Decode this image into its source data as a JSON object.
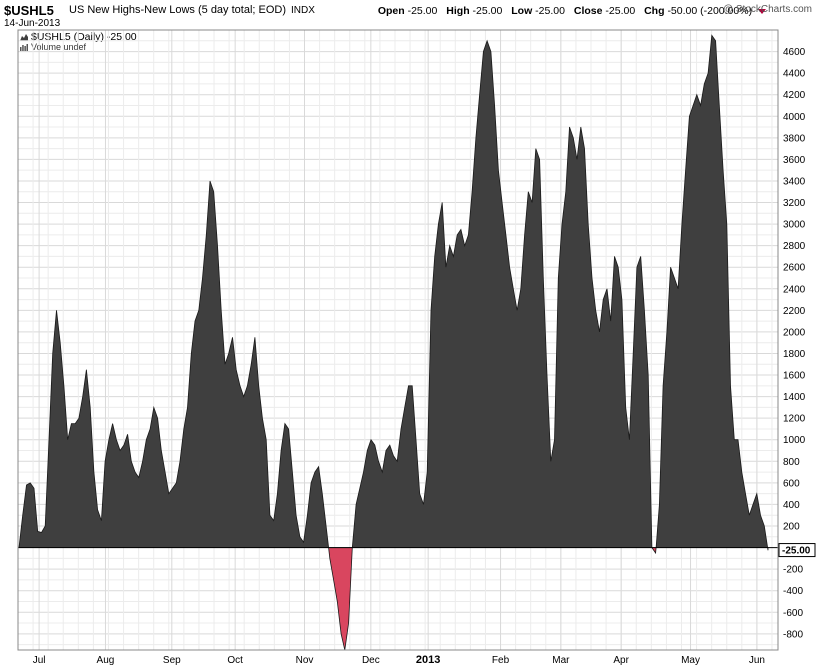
{
  "header": {
    "symbol": "$USHL5",
    "name": "US New Highs-New Lows (5 day total; EOD)",
    "index": "INDX",
    "date": "14-Jun-2013",
    "copyright": "@ StockCharts.com",
    "ohlc": {
      "open_label": "Open",
      "open": "-25.00",
      "high_label": "High",
      "high": "-25.00",
      "low_label": "Low",
      "low": "-25.00",
      "close_label": "Close",
      "close": "-25.00",
      "chg_label": "Chg",
      "chg": "-50.00 (-200.00%)"
    }
  },
  "legend": {
    "series_label": "$USHL5 (Daily) -25.00",
    "volume_label": "Volume undef"
  },
  "colors": {
    "positive_fill": "#3f3f3f",
    "negative_fill": "#d9465f",
    "grid": "#d9d9d9",
    "chg_arrow": "#b3003a"
  },
  "chart_data": {
    "type": "area",
    "title": "US New Highs-New Lows (5 day total; EOD)",
    "xlabel": "",
    "ylabel": "",
    "ylim": [
      -950,
      4800
    ],
    "grid": true,
    "y_ticks": [
      -800,
      -600,
      -400,
      -200,
      200,
      400,
      600,
      800,
      1000,
      1200,
      1400,
      1600,
      1800,
      2000,
      2200,
      2400,
      2600,
      2800,
      3000,
      3200,
      3400,
      3600,
      3800,
      4000,
      4200,
      4400,
      4600
    ],
    "last_value_label": "-25.00",
    "x_tick_labels": [
      "Jul",
      "Aug",
      "Sep",
      "Oct",
      "Nov",
      "Dec",
      "2013",
      "Feb",
      "Mar",
      "Apr",
      "May",
      "Jun"
    ],
    "x_tick_positions": [
      7,
      29,
      51,
      72,
      95,
      117,
      136,
      160,
      180,
      200,
      223,
      245
    ],
    "x_range": [
      0,
      252
    ],
    "series": [
      {
        "values": [
          0,
          300,
          580,
          600,
          550,
          150,
          140,
          200,
          1000,
          1800,
          2200,
          1900,
          1500,
          1000,
          1150,
          1150,
          1200,
          1400,
          1650,
          1300,
          700,
          350,
          250,
          800,
          1000,
          1150,
          1000,
          900,
          950,
          1050,
          800,
          700,
          650,
          800,
          1000,
          1100,
          1300,
          1200,
          900,
          700,
          500,
          550,
          600,
          800,
          1100,
          1300,
          1800,
          2100,
          2200,
          2500,
          2900,
          3400,
          3300,
          2800,
          2200,
          1700,
          1800,
          1950,
          1650,
          1500,
          1400,
          1500,
          1700,
          1950,
          1500,
          1200,
          1000,
          300,
          250,
          500,
          900,
          1150,
          1100,
          700,
          300,
          100,
          50,
          300,
          600,
          700,
          750,
          500,
          200,
          -100,
          -300,
          -500,
          -800,
          -950,
          -700,
          0,
          400,
          550,
          700,
          900,
          1000,
          950,
          800,
          700,
          900,
          950,
          850,
          800,
          1100,
          1300,
          1500,
          1500,
          1000,
          500,
          400,
          700,
          2200,
          2700,
          3000,
          3200,
          2600,
          2800,
          2700,
          2900,
          2950,
          2800,
          2900,
          3300,
          3800,
          4200,
          4600,
          4700,
          4600,
          4100,
          3500,
          3200,
          2900,
          2600,
          2400,
          2200,
          2400,
          2900,
          3300,
          3200,
          3700,
          3600,
          2500,
          1600,
          800,
          1000,
          2500,
          3000,
          3300,
          3900,
          3800,
          3600,
          3900,
          3700,
          3000,
          2500,
          2200,
          2000,
          2300,
          2400,
          2100,
          2700,
          2600,
          2300,
          1300,
          1000,
          1800,
          2600,
          2700,
          2200,
          1600,
          0,
          -50,
          400,
          1500,
          2000,
          2600,
          2500,
          2400,
          3000,
          3500,
          4000,
          4100,
          4200,
          4100,
          4300,
          4400,
          4750,
          4700,
          4100,
          3500,
          3000,
          1500,
          1000,
          1000,
          700,
          500,
          300,
          400,
          500,
          300,
          200,
          -25
        ]
      }
    ]
  }
}
